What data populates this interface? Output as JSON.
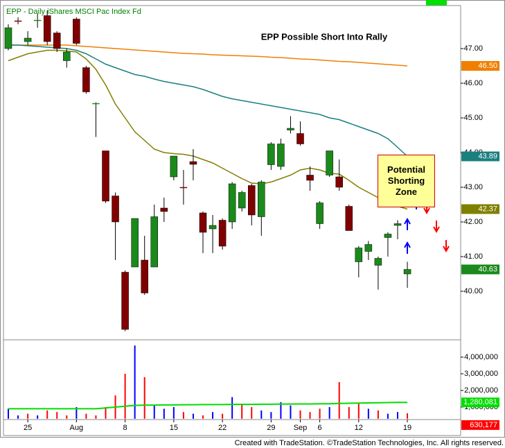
{
  "chart_data": {
    "type": "candlestick",
    "subtitle": "EPP - Daily  iShares MSCI Pac Index Fd",
    "title": "EPP Possible Short Into Rally",
    "annotation": "Potential Shorting Zone",
    "categories": [
      null,
      null,
      "25",
      null,
      null,
      null,
      null,
      "Aug",
      null,
      null,
      null,
      null,
      "8",
      null,
      null,
      null,
      null,
      "15",
      null,
      null,
      null,
      null,
      "22",
      null,
      null,
      null,
      null,
      "29",
      null,
      null,
      "Sep",
      null,
      "6",
      null,
      null,
      null,
      "12",
      null,
      null,
      null,
      null,
      "19"
    ],
    "open": [
      47.0,
      47.8,
      47.2,
      47.8,
      47.95,
      47.45,
      46.65,
      47.85,
      46.45,
      45.4,
      44.05,
      42.75,
      40.55,
      40.7,
      40.9,
      40.7,
      42.4,
      43.3,
      43.0,
      43.74,
      42.26,
      41.8,
      42.05,
      42.0,
      42.4,
      43.05,
      42.15,
      43.65,
      43.6,
      44.65,
      44.55,
      43.35,
      41.95,
      43.35,
      43.3,
      42.45,
      40.85,
      41.15,
      40.75,
      41.55,
      41.9,
      40.5
    ],
    "high": [
      47.7,
      47.9,
      47.5,
      48.0,
      48.1,
      47.5,
      47.0,
      47.9,
      46.5,
      45.45,
      44.05,
      42.85,
      40.6,
      42.1,
      41.6,
      42.5,
      42.7,
      43.9,
      43.5,
      44.1,
      42.3,
      42.2,
      42.1,
      43.15,
      42.9,
      43.1,
      43.2,
      44.3,
      44.4,
      45.05,
      44.9,
      43.6,
      42.6,
      44.05,
      43.8,
      42.5,
      41.3,
      41.45,
      41.0,
      41.7,
      42.05,
      40.85
    ],
    "low": [
      46.95,
      47.7,
      47.1,
      47.6,
      47.1,
      46.9,
      46.45,
      47.1,
      45.7,
      44.45,
      42.55,
      40.9,
      38.85,
      40.7,
      39.9,
      40.7,
      42.0,
      43.2,
      42.5,
      43.2,
      41.1,
      41.1,
      41.2,
      41.8,
      42.3,
      41.9,
      41.6,
      43.5,
      43.5,
      44.55,
      44.2,
      42.9,
      41.8,
      43.3,
      42.9,
      41.75,
      40.4,
      40.9,
      40.05,
      41.0,
      41.5,
      40.1
    ],
    "close": [
      47.6,
      47.78,
      47.3,
      47.82,
      47.2,
      47.0,
      46.9,
      47.15,
      45.75,
      45.42,
      42.6,
      42.0,
      38.9,
      42.1,
      39.95,
      42.15,
      42.3,
      43.9,
      42.98,
      43.66,
      41.7,
      41.9,
      41.3,
      43.1,
      42.85,
      42.2,
      43.15,
      44.25,
      44.25,
      44.7,
      44.25,
      43.2,
      42.55,
      44.05,
      43.0,
      41.75,
      41.25,
      41.35,
      40.95,
      41.65,
      41.95,
      40.63
    ],
    "close_last_label": "40.63",
    "up_color": "#1a8a1a",
    "down_color": "#800000",
    "ylim": [
      38.6,
      48.2
    ],
    "yticks": [
      {
        "value": 40,
        "label": "40.00"
      },
      {
        "value": 41,
        "label": "41.00"
      },
      {
        "value": 42,
        "label": "42.00"
      },
      {
        "value": 43,
        "label": "43.00"
      },
      {
        "value": 44,
        "label": "44.00"
      },
      {
        "value": 45,
        "label": "45.00"
      },
      {
        "value": 46,
        "label": "46.00"
      },
      {
        "value": 47,
        "label": "47.00"
      }
    ],
    "moving_averages": [
      {
        "color": "#f07f00",
        "last_label": "46.50",
        "values": [
          47.1,
          47.1,
          47.1,
          47.1,
          47.1,
          47.1,
          47.1,
          47.08,
          47.06,
          47.04,
          47.02,
          47.0,
          46.98,
          46.96,
          46.94,
          46.92,
          46.9,
          46.88,
          46.86,
          46.85,
          46.84,
          46.82,
          46.81,
          46.8,
          46.79,
          46.78,
          46.77,
          46.75,
          46.74,
          46.72,
          46.7,
          46.69,
          46.67,
          46.65,
          46.63,
          46.62,
          46.6,
          46.58,
          46.56,
          46.54,
          46.52,
          46.5
        ]
      },
      {
        "color": "#1a7f7f",
        "last_label": "43.89",
        "values": [
          47.1,
          47.1,
          47.08,
          47.06,
          47.04,
          47.02,
          47.0,
          46.95,
          46.85,
          46.7,
          46.55,
          46.45,
          46.35,
          46.25,
          46.2,
          46.12,
          46.05,
          46.0,
          45.95,
          45.9,
          45.82,
          45.72,
          45.62,
          45.55,
          45.5,
          45.45,
          45.4,
          45.35,
          45.3,
          45.25,
          45.2,
          45.15,
          45.1,
          45.0,
          44.95,
          44.85,
          44.75,
          44.65,
          44.55,
          44.4,
          44.15,
          43.89
        ]
      },
      {
        "color": "#808000",
        "last_label": "42.37",
        "values": [
          46.65,
          46.75,
          46.85,
          46.9,
          46.95,
          46.95,
          46.93,
          46.9,
          46.7,
          46.4,
          45.95,
          45.4,
          45.0,
          44.6,
          44.35,
          44.1,
          44.0,
          43.97,
          43.95,
          43.9,
          43.8,
          43.7,
          43.55,
          43.4,
          43.25,
          43.12,
          43.1,
          43.15,
          43.25,
          43.35,
          43.5,
          43.55,
          43.5,
          43.4,
          43.38,
          43.2,
          43.0,
          42.85,
          42.7,
          42.55,
          42.45,
          42.37
        ]
      }
    ],
    "volume": {
      "values": [
        900000,
        500000,
        600000,
        500000,
        800000,
        700000,
        500000,
        1000000,
        600000,
        500000,
        1000000,
        1700000,
        3000000,
        4700000,
        2800000,
        1100000,
        900000,
        1000000,
        700000,
        600000,
        500000,
        700000,
        600000,
        1600000,
        1200000,
        1000000,
        800000,
        700000,
        1300000,
        1100000,
        800000,
        700000,
        900000,
        1000000,
        2500000,
        1000000,
        1200000,
        900000,
        800000,
        600000,
        700000,
        630177
      ],
      "last_label": "630,177",
      "up_color": "#0000ff",
      "down_color": "#ff0000",
      "ylim": [
        300000,
        4900000
      ],
      "yticks": [
        {
          "value": 1000000,
          "label": "1,000,000"
        },
        {
          "value": 2000000,
          "label": "2,000,000"
        },
        {
          "value": 3000000,
          "label": "3,000,000"
        },
        {
          "value": 4000000,
          "label": "4,000,000"
        }
      ],
      "ma": {
        "color": "#00dd00",
        "last_label": "1,280,081",
        "values": [
          900000,
          900000,
          900000,
          900000,
          900000,
          900000,
          900000,
          900000,
          900000,
          900000,
          950000,
          1000000,
          1050000,
          1100000,
          1120000,
          1120000,
          1130000,
          1130000,
          1140000,
          1140000,
          1150000,
          1150000,
          1150000,
          1160000,
          1160000,
          1160000,
          1170000,
          1170000,
          1180000,
          1180000,
          1190000,
          1190000,
          1200000,
          1200000,
          1220000,
          1230000,
          1240000,
          1250000,
          1260000,
          1270000,
          1280000,
          1280081
        ]
      }
    }
  },
  "footer": "Created with TradeStation. ©TradeStation Technologies, Inc. All rights reserved."
}
